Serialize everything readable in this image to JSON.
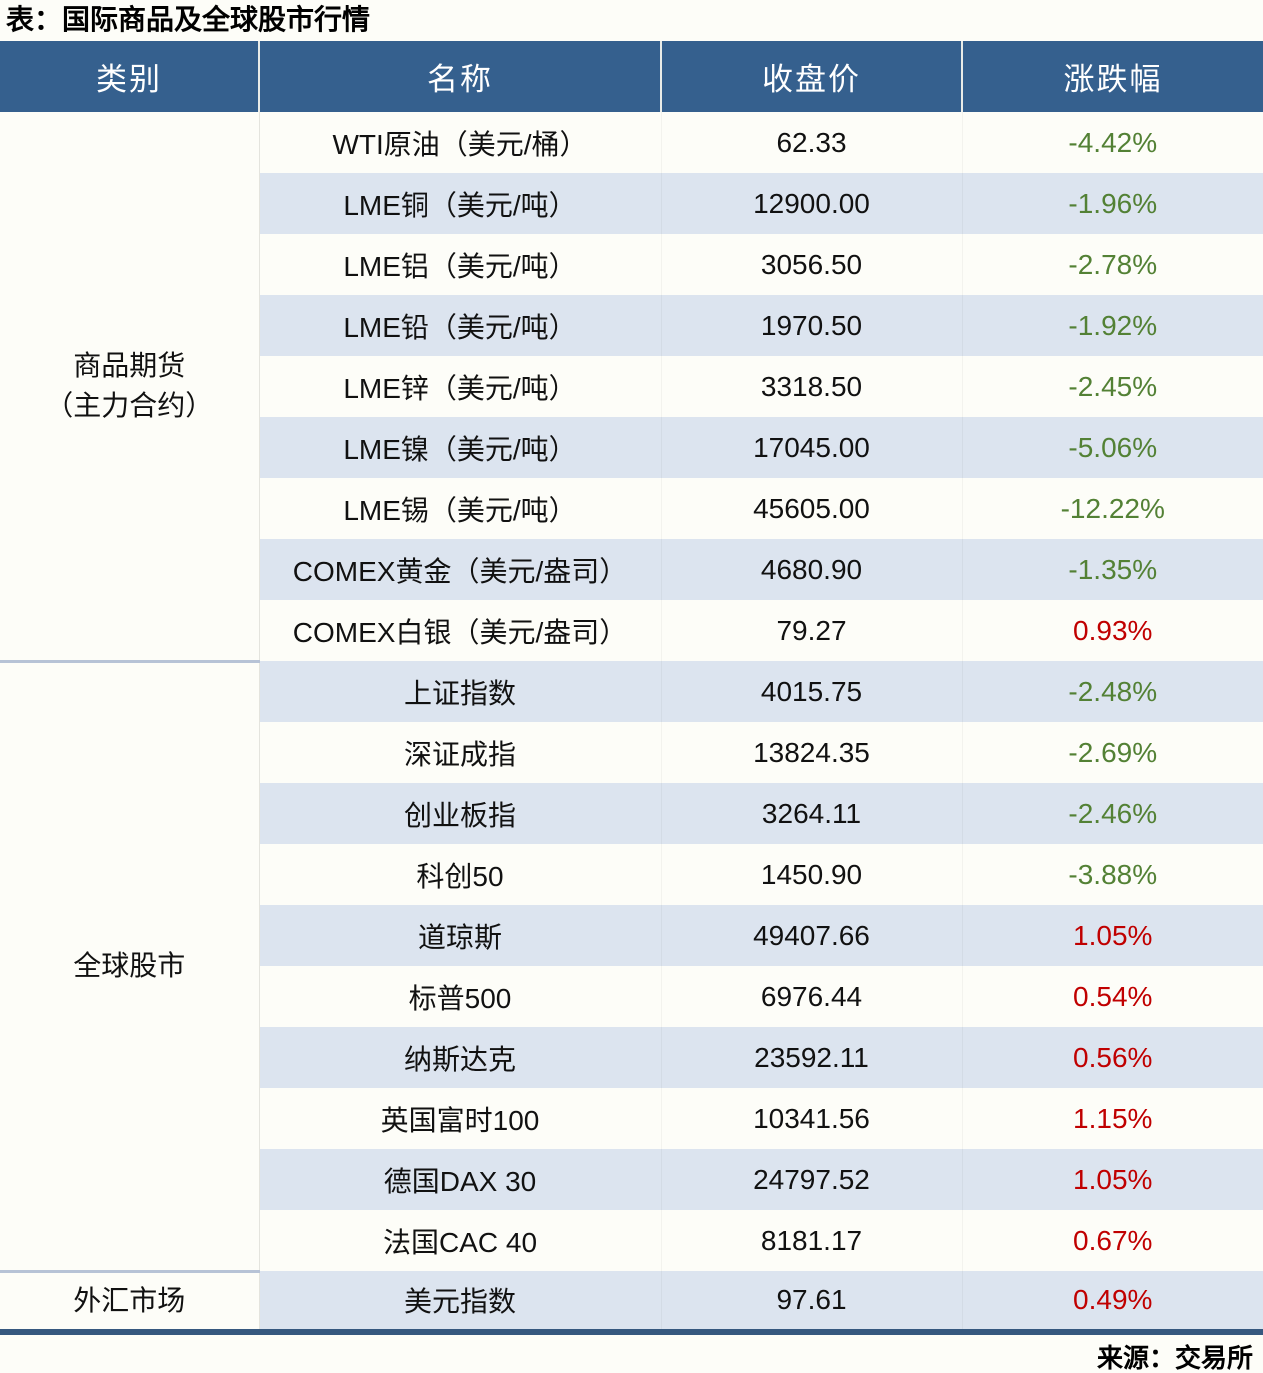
{
  "title": "表：国际商品及全球股市行情",
  "source": "来源：交易所",
  "colors": {
    "header_bg": "#35608e",
    "header_text": "#ffffff",
    "stripe_bg": "#dce4ef",
    "negative_green": "#538135",
    "positive_red": "#c00000",
    "bottom_border": "#36587f",
    "group_separator": "#b7c3d6"
  },
  "table": {
    "headers": [
      "类别",
      "名称",
      "收盘价",
      "涨跌幅"
    ],
    "groups": [
      {
        "category_lines": [
          "商品期货",
          "（主力合约）"
        ],
        "rows": [
          {
            "name": "WTI原油（美元/桶）",
            "close": "62.33",
            "change": "-4.42%",
            "direction": "down"
          },
          {
            "name": "LME铜（美元/吨）",
            "close": "12900.00",
            "change": "-1.96%",
            "direction": "down"
          },
          {
            "name": "LME铝（美元/吨）",
            "close": "3056.50",
            "change": "-2.78%",
            "direction": "down"
          },
          {
            "name": "LME铅（美元/吨）",
            "close": "1970.50",
            "change": "-1.92%",
            "direction": "down"
          },
          {
            "name": "LME锌（美元/吨）",
            "close": "3318.50",
            "change": "-2.45%",
            "direction": "down"
          },
          {
            "name": "LME镍（美元/吨）",
            "close": "17045.00",
            "change": "-5.06%",
            "direction": "down"
          },
          {
            "name": "LME锡（美元/吨）",
            "close": "45605.00",
            "change": "-12.22%",
            "direction": "down"
          },
          {
            "name": "COMEX黄金（美元/盎司）",
            "close": "4680.90",
            "change": "-1.35%",
            "direction": "down"
          },
          {
            "name": "COMEX白银（美元/盎司）",
            "close": "79.27",
            "change": "0.93%",
            "direction": "up"
          }
        ]
      },
      {
        "category_lines": [
          "全球股市"
        ],
        "rows": [
          {
            "name": "上证指数",
            "close": "4015.75",
            "change": "-2.48%",
            "direction": "down"
          },
          {
            "name": "深证成指",
            "close": "13824.35",
            "change": "-2.69%",
            "direction": "down"
          },
          {
            "name": "创业板指",
            "close": "3264.11",
            "change": "-2.46%",
            "direction": "down"
          },
          {
            "name": "科创50",
            "close": "1450.90",
            "change": "-3.88%",
            "direction": "down"
          },
          {
            "name": "道琼斯",
            "close": "49407.66",
            "change": "1.05%",
            "direction": "up"
          },
          {
            "name": "标普500",
            "close": "6976.44",
            "change": "0.54%",
            "direction": "up"
          },
          {
            "name": "纳斯达克",
            "close": "23592.11",
            "change": "0.56%",
            "direction": "up"
          },
          {
            "name": "英国富时100",
            "close": "10341.56",
            "change": "1.15%",
            "direction": "up"
          },
          {
            "name": "德国DAX 30",
            "close": "24797.52",
            "change": "1.05%",
            "direction": "up"
          },
          {
            "name": "法国CAC 40",
            "close": "8181.17",
            "change": "0.67%",
            "direction": "up"
          }
        ]
      },
      {
        "category_lines": [
          "外汇市场"
        ],
        "rows": [
          {
            "name": "美元指数",
            "close": "97.61",
            "change": "0.49%",
            "direction": "up"
          }
        ]
      }
    ]
  }
}
